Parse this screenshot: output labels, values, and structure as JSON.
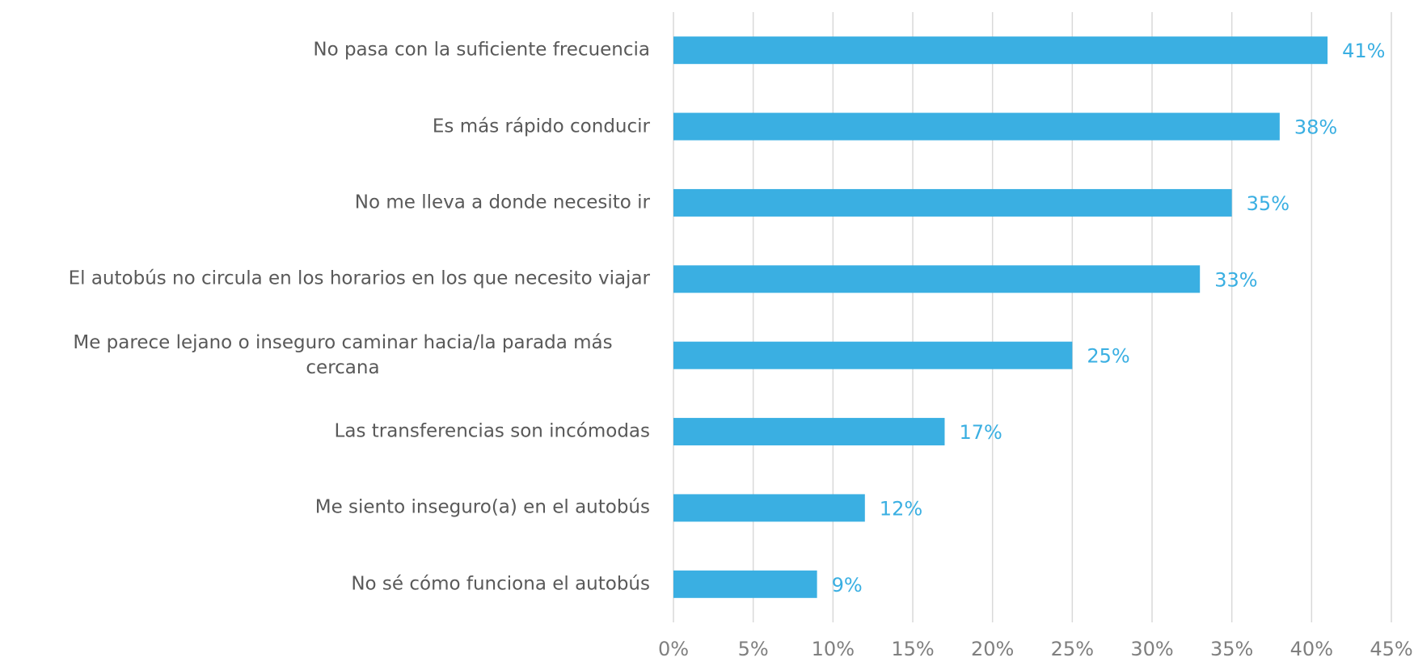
{
  "chart_data": {
    "type": "bar",
    "orientation": "horizontal",
    "categories": [
      "No pasa con la suficiente frecuencia",
      "Es más rápido conducir",
      "No me lleva a donde necesito ir",
      "El autobús no circula en los horarios en los que necesito viajar",
      "Me parece lejano o inseguro caminar hacia/la parada más cercana",
      "Las transferencias son incómodas",
      "Me siento inseguro(a) en el autobús",
      "No sé cómo funciona el autobús"
    ],
    "values": [
      41,
      38,
      35,
      33,
      25,
      17,
      12,
      9
    ],
    "value_labels": [
      "41%",
      "38%",
      "35%",
      "33%",
      "25%",
      "17%",
      "12%",
      "9%"
    ],
    "color": "#3aafe2",
    "xlim": [
      0,
      45
    ],
    "xticks": [
      {
        "value": 0,
        "label": "0%"
      },
      {
        "value": 5,
        "label": "5%"
      },
      {
        "value": 10,
        "label": "10%"
      },
      {
        "value": 15,
        "label": "15%"
      },
      {
        "value": 20,
        "label": "20%"
      },
      {
        "value": 25,
        "label": "25%"
      },
      {
        "value": 30,
        "label": "30%"
      },
      {
        "value": 35,
        "label": "35%"
      },
      {
        "value": 40,
        "label": "40%"
      },
      {
        "value": 45,
        "label": "45%"
      }
    ],
    "grid": true
  }
}
